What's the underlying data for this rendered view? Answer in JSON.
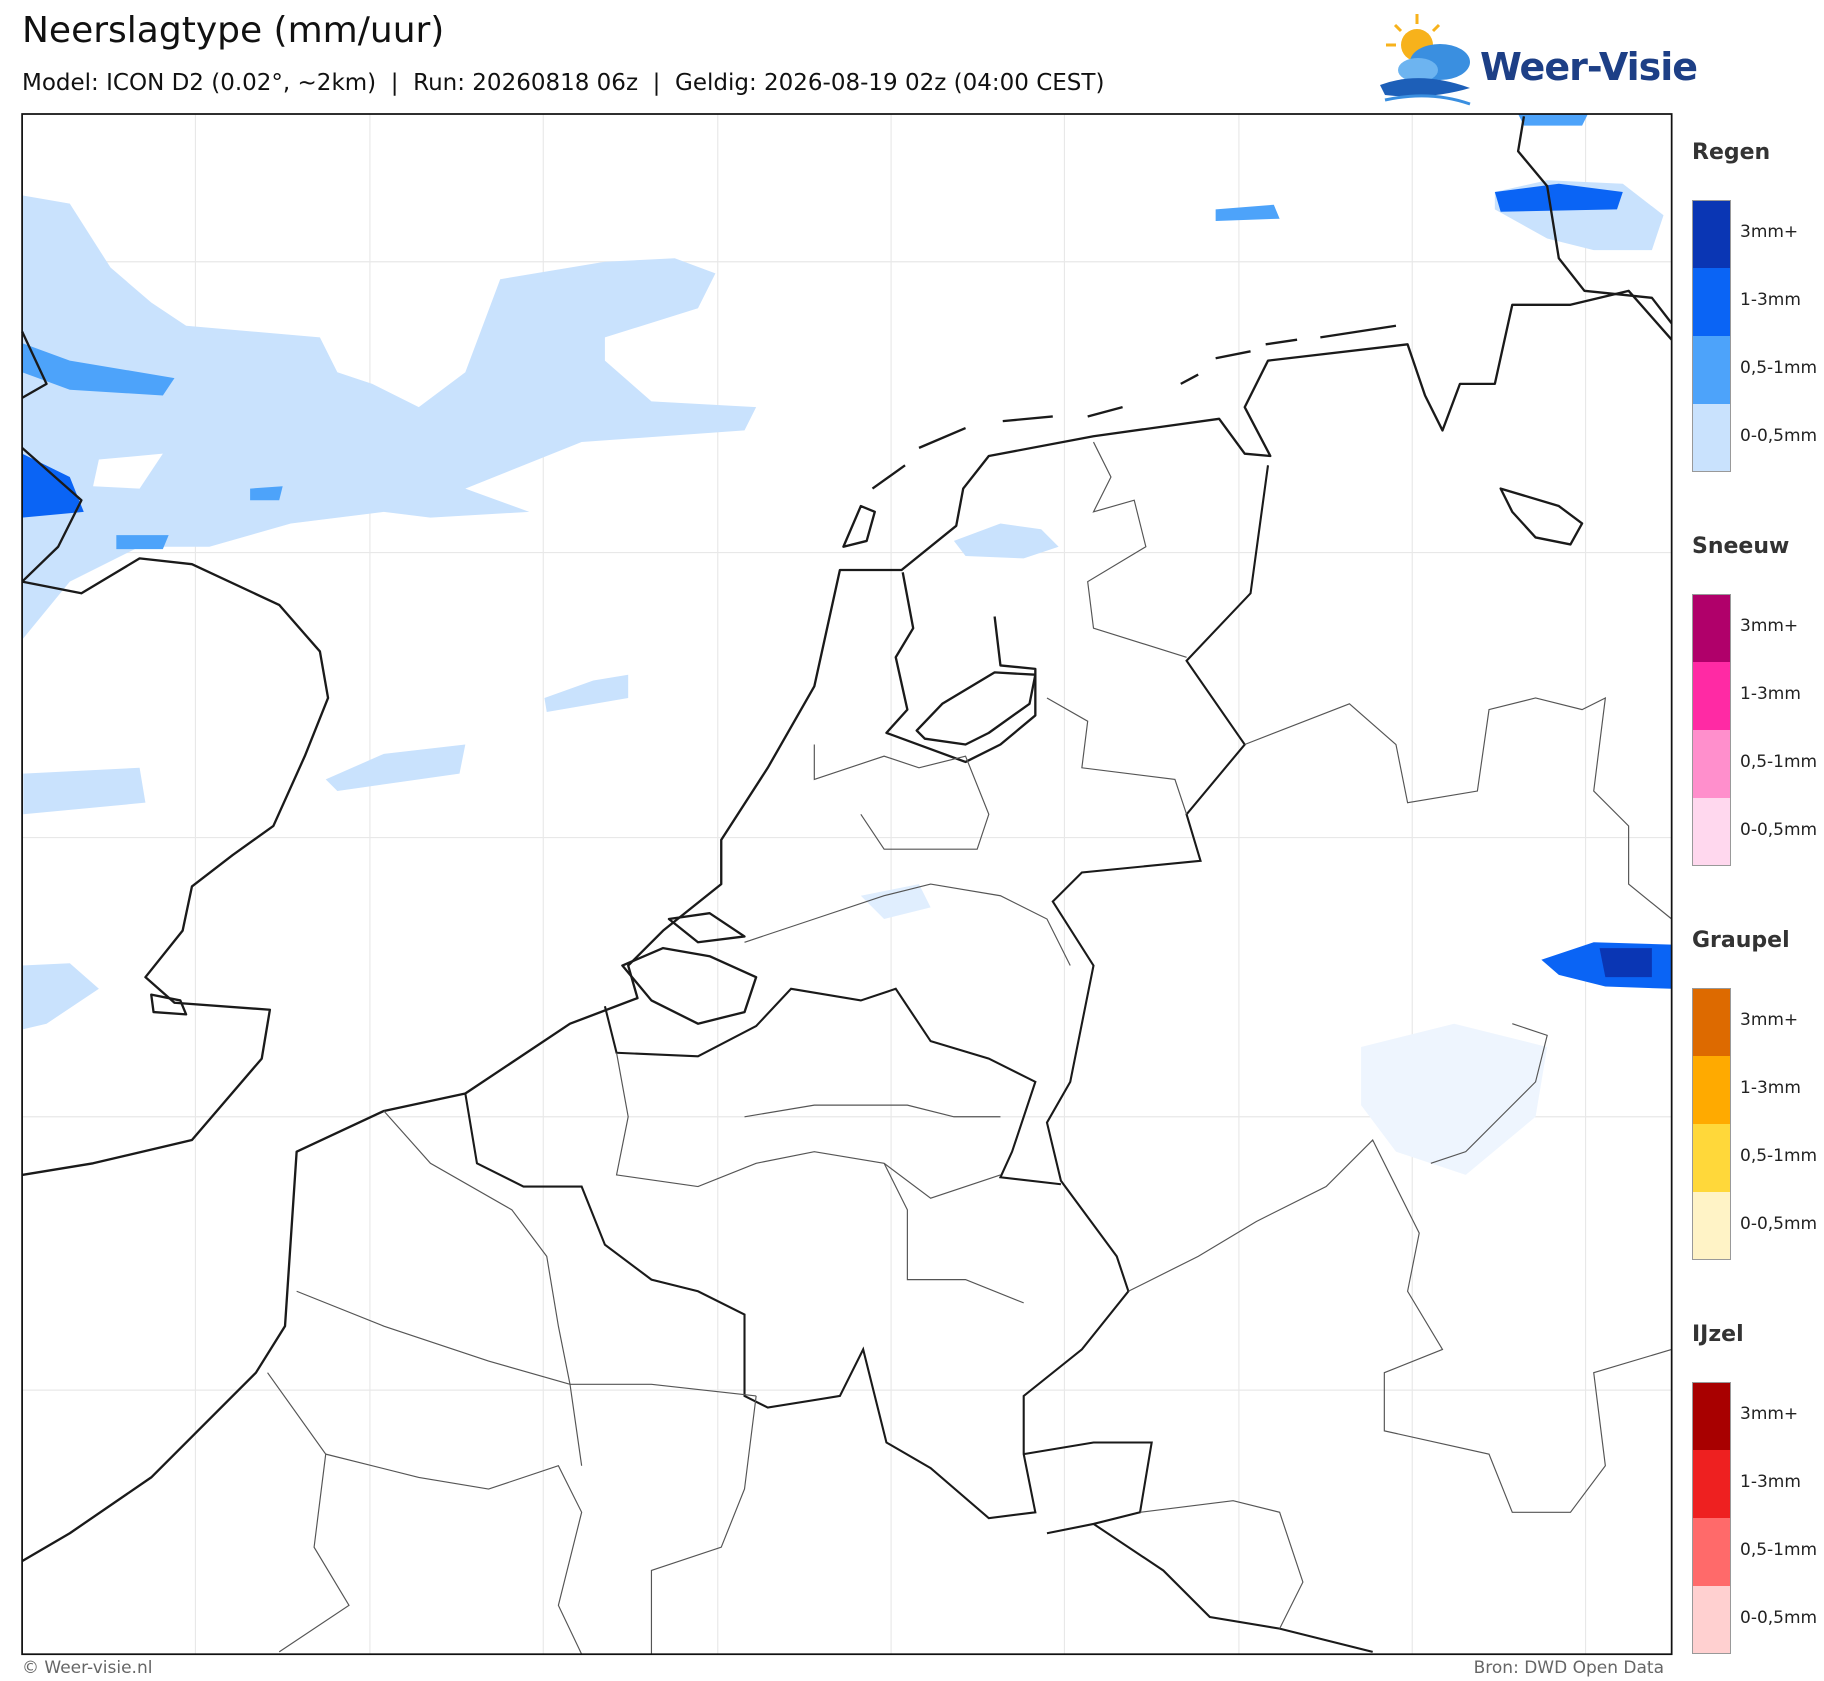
{
  "header": {
    "title": "Neerslagtype (mm/uur)",
    "subtitle": "Model: ICON D2 (0.02°, ~2km)  |  Run: 20260818 06z  |  Geldig: 2026-08-19 02z (04:00 CEST)"
  },
  "logo": {
    "text": "Weer-Visie"
  },
  "legend": [
    {
      "title": "Regen",
      "items": [
        {
          "label": "3mm+",
          "color": "#0a36b4"
        },
        {
          "label": "1-3mm",
          "color": "#0a64f5"
        },
        {
          "label": "0,5-1mm",
          "color": "#4da3fa"
        },
        {
          "label": "0-0,5mm",
          "color": "#c9e2fd"
        }
      ]
    },
    {
      "title": "Sneeuw",
      "items": [
        {
          "label": "3mm+",
          "color": "#b0006a"
        },
        {
          "label": "1-3mm",
          "color": "#ff2aa4"
        },
        {
          "label": "0,5-1mm",
          "color": "#ff8fcc"
        },
        {
          "label": "0-0,5mm",
          "color": "#ffd8ee"
        }
      ]
    },
    {
      "title": "Graupel",
      "items": [
        {
          "label": "3mm+",
          "color": "#dd6a00"
        },
        {
          "label": "1-3mm",
          "color": "#ffaa00"
        },
        {
          "label": "0,5-1mm",
          "color": "#ffd83a"
        },
        {
          "label": "0-0,5mm",
          "color": "#fff3c6"
        }
      ]
    },
    {
      "title": "IJzel",
      "items": [
        {
          "label": "3mm+",
          "color": "#a80000"
        },
        {
          "label": "1-3mm",
          "color": "#ee2020"
        },
        {
          "label": "0,5-1mm",
          "color": "#ff6a6a"
        },
        {
          "label": "0-0,5mm",
          "color": "#ffd0d0"
        }
      ]
    }
  ],
  "footer": {
    "left": "© Weer-visie.nl",
    "right": "Bron: DWD Open Data"
  }
}
